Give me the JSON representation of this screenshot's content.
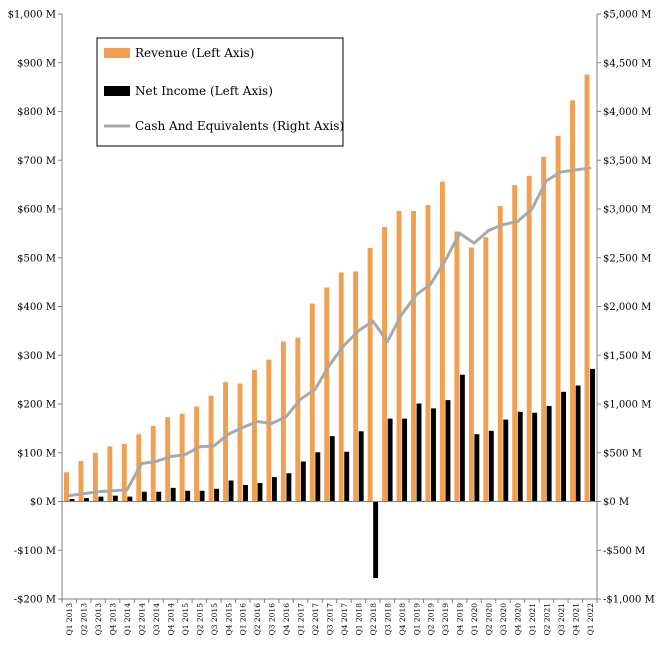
{
  "chart_data": {
    "type": "bar",
    "title": "",
    "xlabel": "",
    "ylabel_left": "",
    "ylabel_right": "",
    "categories": [
      "Q1 2013",
      "Q2 2013",
      "Q3 2013",
      "Q4 2013",
      "Q1 2014",
      "Q2 2014",
      "Q3 2014",
      "Q4 2014",
      "Q1 2015",
      "Q2 2015",
      "Q3 2015",
      "Q4 2015",
      "Q1 2016",
      "Q2 2016",
      "Q3 2016",
      "Q4 2016",
      "Q1 2017",
      "Q2 2017",
      "Q3 2017",
      "Q4 2017",
      "Q1 2018",
      "Q2 2018",
      "Q3 2018",
      "Q4 2018",
      "Q1 2019",
      "Q2 2019",
      "Q3 2019",
      "Q4 2019",
      "Q1 2020",
      "Q2 2020",
      "Q3 2020",
      "Q4 2020",
      "Q1 2021",
      "Q2 2021",
      "Q3 2021",
      "Q4 2021",
      "Q1 2022"
    ],
    "left_axis": {
      "ylim": [
        -200,
        1000
      ],
      "ticks": [
        -200,
        -100,
        0,
        100,
        200,
        300,
        400,
        500,
        600,
        700,
        800,
        900,
        1000
      ],
      "tick_labels": [
        "-$200 M",
        "-$100 M",
        "$0 M",
        "$100 M",
        "$200 M",
        "$300 M",
        "$400 M",
        "$500 M",
        "$600 M",
        "$700 M",
        "$800 M",
        "$900 M",
        "$1,000 M"
      ]
    },
    "right_axis": {
      "ylim": [
        -1000,
        5000
      ],
      "ticks": [
        -1000,
        -500,
        0,
        500,
        1000,
        1500,
        2000,
        2500,
        3000,
        3500,
        4000,
        4500,
        5000
      ],
      "tick_labels": [
        "-$1,000 M",
        "-$500 M",
        "$0 M",
        "$500 M",
        "$1,000 M",
        "$1,500 M",
        "$2,000 M",
        "$2,500 M",
        "$3,000 M",
        "$3,500 M",
        "$4,000 M",
        "$4,500 M",
        "$5,000 M"
      ]
    },
    "series": [
      {
        "name": "Revenue (Left Axis)",
        "kind": "bar",
        "axis": "left",
        "color": "#F0A050",
        "values": [
          60,
          83,
          100,
          113,
          118,
          138,
          155,
          173,
          180,
          195,
          217,
          245,
          242,
          270,
          291,
          328,
          336,
          406,
          439,
          470,
          472,
          520,
          563,
          596,
          596,
          608,
          656,
          554,
          521,
          542,
          606,
          649,
          668,
          707,
          750,
          823,
          876
        ]
      },
      {
        "name": "Net Income (Left Axis)",
        "kind": "bar",
        "axis": "left",
        "color": "#000000",
        "values": [
          5,
          7,
          10,
          12,
          10,
          20,
          20,
          28,
          22,
          22,
          26,
          43,
          34,
          38,
          50,
          58,
          82,
          101,
          134,
          102,
          144,
          -157,
          170,
          170,
          201,
          191,
          208,
          260,
          138,
          145,
          168,
          184,
          182,
          196,
          225,
          238,
          272
        ]
      },
      {
        "name": "Cash And Equivalents (Right Axis)",
        "kind": "line",
        "axis": "right",
        "color": "#A9A9A9",
        "values": [
          60,
          80,
          100,
          110,
          120,
          390,
          410,
          460,
          480,
          560,
          570,
          690,
          760,
          820,
          800,
          870,
          1050,
          1150,
          1400,
          1600,
          1750,
          1850,
          1640,
          1920,
          2120,
          2230,
          2470,
          2750,
          2650,
          2780,
          2840,
          2870,
          3000,
          3290,
          3380,
          3400,
          3420
        ]
      }
    ],
    "legend": {
      "placement": "top-left",
      "entries": [
        "Revenue (Left Axis)",
        "Net Income (Left Axis)",
        "Cash And Equivalents (Right Axis)"
      ]
    },
    "grid": false
  }
}
